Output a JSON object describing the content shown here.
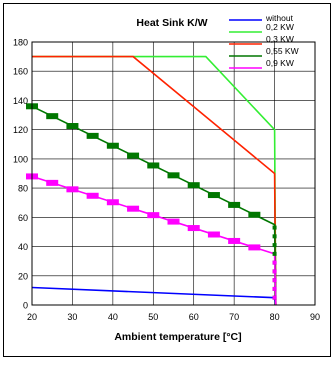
{
  "chart_data": {
    "type": "line",
    "title": "Heat Sink K/W",
    "xlabel": "Ambient temperature [°C]",
    "ylabel": "",
    "xlim": [
      20,
      90
    ],
    "ylim": [
      0,
      180
    ],
    "xticks": [
      "20",
      "30",
      "40",
      "50",
      "60",
      "70",
      "80",
      "90"
    ],
    "yticks": [
      "0",
      "20",
      "40",
      "60",
      "80",
      "100",
      "120",
      "140",
      "160",
      "180"
    ],
    "grid": true,
    "legend_position": "top-right",
    "series": [
      {
        "name": "without",
        "color": "#0000ff",
        "marker": "none",
        "x": [
          20,
          80,
          80.3
        ],
        "y": [
          12,
          5,
          0
        ]
      },
      {
        "name": "0,2 KW",
        "color": "#33ee33",
        "marker": "none",
        "x": [
          20,
          63,
          80,
          80.3
        ],
        "y": [
          170,
          170,
          120,
          0
        ]
      },
      {
        "name": "0,3 KW",
        "color": "#ff2200",
        "marker": "none",
        "x": [
          20,
          45,
          80,
          80.3
        ],
        "y": [
          170,
          170,
          90,
          0
        ]
      },
      {
        "name": "0,55 KW",
        "color": "#007700",
        "marker": "square",
        "x": [
          20,
          80,
          80.3
        ],
        "y": [
          136,
          55,
          0
        ]
      },
      {
        "name": "0,9 KW",
        "color": "#ff00ff",
        "marker": "square",
        "x": [
          20,
          80,
          80.3
        ],
        "y": [
          88,
          35,
          0
        ]
      }
    ]
  }
}
